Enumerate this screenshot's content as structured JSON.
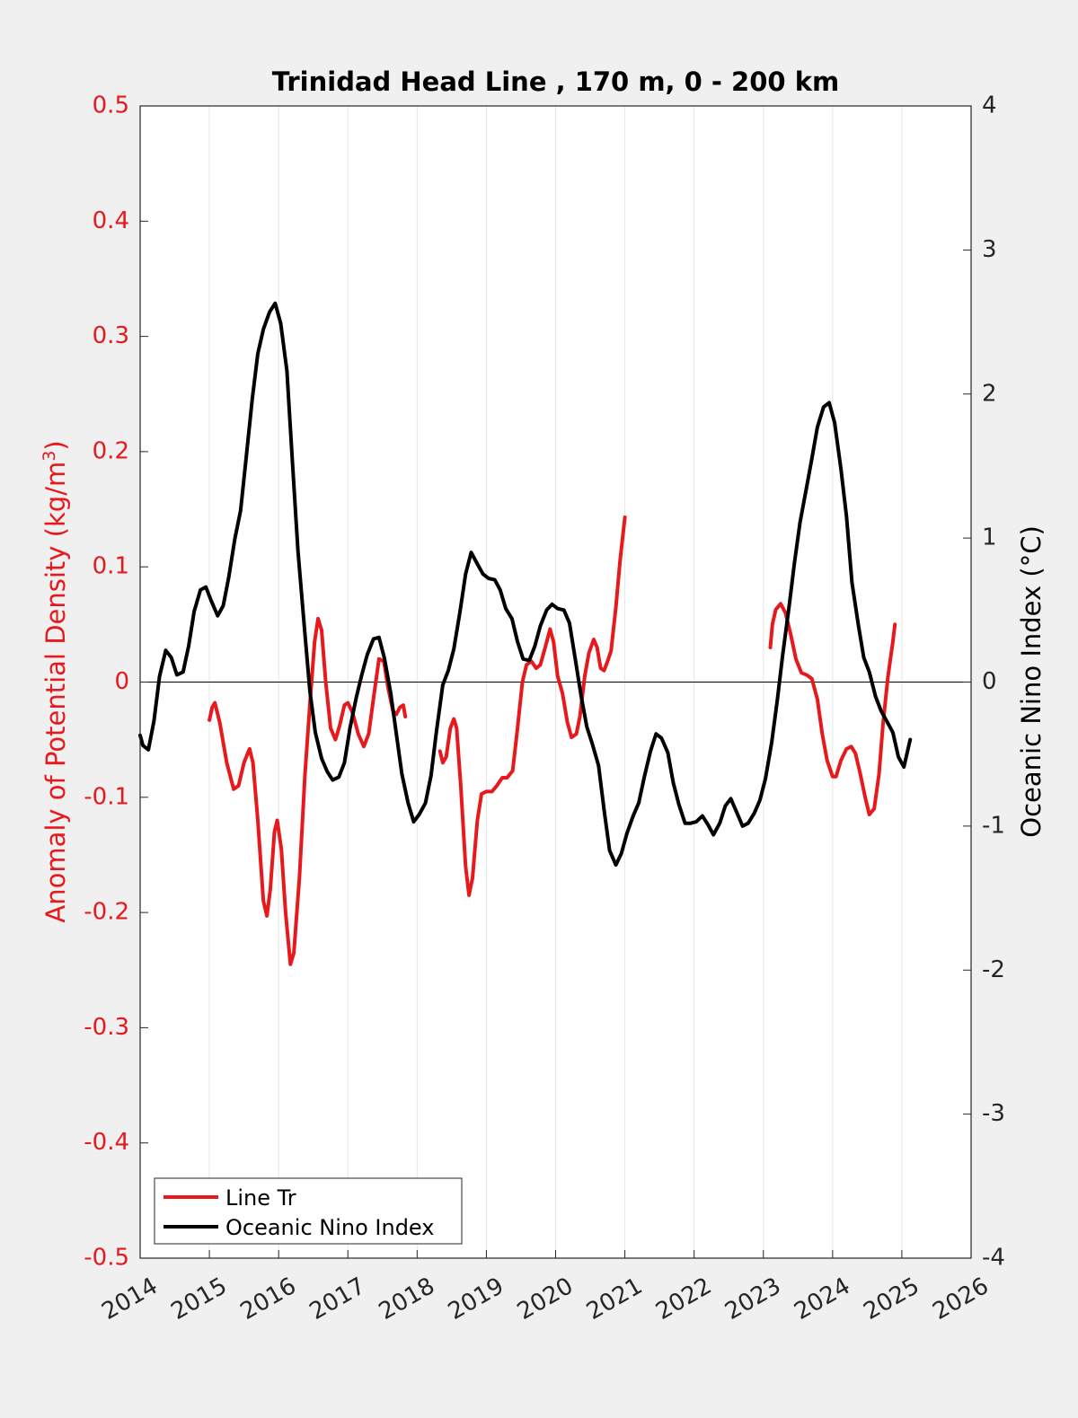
{
  "chart_data": {
    "type": "line",
    "title": "Trinidad Head Line , 170 m, 0 - 200 km",
    "x_ticks": [
      "2014",
      "2015",
      "2016",
      "2017",
      "2018",
      "2019",
      "2020",
      "2021",
      "2022",
      "2023",
      "2024",
      "2025",
      "2026"
    ],
    "xlim": [
      2014,
      2026
    ],
    "left_axis": {
      "label": "Anomaly of Potential Density (kg/m",
      "label_sup": "3",
      "label_end": ")",
      "ylim": [
        -0.5,
        0.5
      ],
      "ticks": [
        "0.5",
        "0.4",
        "0.3",
        "0.2",
        "0.1",
        "0",
        "-0.1",
        "-0.2",
        "-0.3",
        "-0.4",
        "-0.5"
      ],
      "color": "#e8191c"
    },
    "right_axis": {
      "label": "Oceanic Nino Index (°C)",
      "ylim": [
        -4,
        4
      ],
      "ticks": [
        "4",
        "3",
        "2",
        "1",
        "0",
        "-1",
        "-2",
        "-3",
        "-4"
      ],
      "color": "#000000"
    },
    "grid": "vertical",
    "zero_line": true,
    "legend": {
      "placement": "bottom-left",
      "entries": [
        "Line Tr",
        "Oceanic Nino Index"
      ]
    },
    "series": [
      {
        "name": "Line Tr",
        "axis": "left",
        "color": "#e8191c",
        "segments": [
          [
            [
              2015.0,
              -0.033
            ],
            [
              2015.04,
              -0.022
            ],
            [
              2015.08,
              -0.018
            ],
            [
              2015.15,
              -0.035
            ],
            [
              2015.25,
              -0.07
            ],
            [
              2015.35,
              -0.093
            ],
            [
              2015.42,
              -0.09
            ],
            [
              2015.5,
              -0.07
            ],
            [
              2015.58,
              -0.058
            ],
            [
              2015.63,
              -0.07
            ],
            [
              2015.7,
              -0.12
            ],
            [
              2015.78,
              -0.19
            ],
            [
              2015.83,
              -0.203
            ],
            [
              2015.88,
              -0.18
            ],
            [
              2015.94,
              -0.13
            ],
            [
              2015.98,
              -0.12
            ],
            [
              2016.04,
              -0.145
            ],
            [
              2016.1,
              -0.2
            ],
            [
              2016.17,
              -0.245
            ],
            [
              2016.22,
              -0.235
            ],
            [
              2016.3,
              -0.17
            ],
            [
              2016.38,
              -0.08
            ],
            [
              2016.45,
              -0.02
            ],
            [
              2016.52,
              0.035
            ],
            [
              2016.57,
              0.055
            ],
            [
              2016.62,
              0.045
            ],
            [
              2016.68,
              0.0
            ],
            [
              2016.75,
              -0.04
            ],
            [
              2016.82,
              -0.05
            ],
            [
              2016.88,
              -0.038
            ],
            [
              2016.95,
              -0.02
            ],
            [
              2017.0,
              -0.018
            ],
            [
              2017.07,
              -0.027
            ],
            [
              2017.15,
              -0.045
            ],
            [
              2017.23,
              -0.056
            ],
            [
              2017.3,
              -0.045
            ],
            [
              2017.38,
              -0.01
            ],
            [
              2017.45,
              0.02
            ],
            [
              2017.52,
              0.018
            ],
            [
              2017.58,
              -0.005
            ],
            [
              2017.65,
              -0.025
            ],
            [
              2017.7,
              -0.028
            ],
            [
              2017.75,
              -0.022
            ],
            [
              2017.8,
              -0.02
            ],
            [
              2017.83,
              -0.03
            ]
          ],
          [
            [
              2018.33,
              -0.06
            ],
            [
              2018.37,
              -0.07
            ],
            [
              2018.42,
              -0.065
            ],
            [
              2018.48,
              -0.04
            ],
            [
              2018.53,
              -0.032
            ],
            [
              2018.57,
              -0.04
            ],
            [
              2018.63,
              -0.09
            ],
            [
              2018.7,
              -0.16
            ],
            [
              2018.75,
              -0.185
            ],
            [
              2018.8,
              -0.17
            ],
            [
              2018.87,
              -0.12
            ],
            [
              2018.93,
              -0.097
            ],
            [
              2019.0,
              -0.095
            ],
            [
              2019.08,
              -0.095
            ],
            [
              2019.15,
              -0.09
            ],
            [
              2019.23,
              -0.083
            ],
            [
              2019.3,
              -0.083
            ],
            [
              2019.38,
              -0.077
            ],
            [
              2019.45,
              -0.04
            ],
            [
              2019.52,
              0.0
            ],
            [
              2019.58,
              0.015
            ],
            [
              2019.65,
              0.018
            ],
            [
              2019.72,
              0.012
            ],
            [
              2019.78,
              0.015
            ],
            [
              2019.85,
              0.03
            ],
            [
              2019.92,
              0.046
            ],
            [
              2019.97,
              0.035
            ],
            [
              2020.03,
              0.005
            ],
            [
              2020.1,
              -0.01
            ],
            [
              2020.17,
              -0.035
            ],
            [
              2020.23,
              -0.048
            ],
            [
              2020.3,
              -0.045
            ],
            [
              2020.35,
              -0.03
            ],
            [
              2020.42,
              0.005
            ],
            [
              2020.48,
              0.025
            ],
            [
              2020.55,
              0.037
            ],
            [
              2020.6,
              0.03
            ],
            [
              2020.65,
              0.012
            ],
            [
              2020.7,
              0.01
            ],
            [
              2020.75,
              0.018
            ],
            [
              2020.8,
              0.027
            ],
            [
              2020.87,
              0.065
            ],
            [
              2020.93,
              0.105
            ],
            [
              2021.0,
              0.143
            ]
          ],
          [
            [
              2023.1,
              0.03
            ],
            [
              2023.13,
              0.05
            ],
            [
              2023.18,
              0.063
            ],
            [
              2023.25,
              0.068
            ],
            [
              2023.32,
              0.06
            ],
            [
              2023.4,
              0.04
            ],
            [
              2023.47,
              0.02
            ],
            [
              2023.55,
              0.008
            ],
            [
              2023.63,
              0.006
            ],
            [
              2023.7,
              0.003
            ],
            [
              2023.78,
              -0.015
            ],
            [
              2023.85,
              -0.045
            ],
            [
              2023.92,
              -0.068
            ],
            [
              2024.0,
              -0.082
            ],
            [
              2024.05,
              -0.082
            ],
            [
              2024.12,
              -0.068
            ],
            [
              2024.2,
              -0.058
            ],
            [
              2024.27,
              -0.056
            ],
            [
              2024.33,
              -0.062
            ],
            [
              2024.4,
              -0.08
            ],
            [
              2024.47,
              -0.1
            ],
            [
              2024.53,
              -0.115
            ],
            [
              2024.6,
              -0.11
            ],
            [
              2024.67,
              -0.08
            ],
            [
              2024.73,
              -0.035
            ],
            [
              2024.8,
              0.005
            ],
            [
              2024.87,
              0.035
            ],
            [
              2024.9,
              0.05
            ]
          ]
        ]
      },
      {
        "name": "Oceanic Nino Index",
        "axis": "right",
        "color": "#000000",
        "segments": [
          [
            [
              2014.0,
              -0.37
            ],
            [
              2014.04,
              -0.44
            ],
            [
              2014.12,
              -0.47
            ],
            [
              2014.2,
              -0.27
            ],
            [
              2014.28,
              0.04
            ],
            [
              2014.37,
              0.22
            ],
            [
              2014.45,
              0.17
            ],
            [
              2014.53,
              0.05
            ],
            [
              2014.62,
              0.07
            ],
            [
              2014.7,
              0.25
            ],
            [
              2014.78,
              0.49
            ],
            [
              2014.87,
              0.64
            ],
            [
              2014.95,
              0.66
            ],
            [
              2015.03,
              0.56
            ],
            [
              2015.12,
              0.46
            ],
            [
              2015.2,
              0.53
            ],
            [
              2015.28,
              0.73
            ],
            [
              2015.37,
              1.0
            ],
            [
              2015.45,
              1.19
            ],
            [
              2015.53,
              1.55
            ],
            [
              2015.62,
              1.97
            ],
            [
              2015.7,
              2.28
            ],
            [
              2015.78,
              2.45
            ],
            [
              2015.87,
              2.57
            ],
            [
              2015.95,
              2.63
            ],
            [
              2016.03,
              2.49
            ],
            [
              2016.12,
              2.16
            ],
            [
              2016.2,
              1.52
            ],
            [
              2016.28,
              0.91
            ],
            [
              2016.37,
              0.39
            ],
            [
              2016.45,
              -0.06
            ],
            [
              2016.53,
              -0.35
            ],
            [
              2016.62,
              -0.53
            ],
            [
              2016.7,
              -0.62
            ],
            [
              2016.78,
              -0.68
            ],
            [
              2016.87,
              -0.66
            ],
            [
              2016.95,
              -0.56
            ],
            [
              2017.03,
              -0.32
            ],
            [
              2017.12,
              -0.11
            ],
            [
              2017.2,
              0.05
            ],
            [
              2017.28,
              0.19
            ],
            [
              2017.37,
              0.3
            ],
            [
              2017.45,
              0.31
            ],
            [
              2017.53,
              0.16
            ],
            [
              2017.62,
              -0.08
            ],
            [
              2017.7,
              -0.36
            ],
            [
              2017.78,
              -0.64
            ],
            [
              2017.87,
              -0.84
            ],
            [
              2017.95,
              -0.97
            ],
            [
              2018.03,
              -0.92
            ],
            [
              2018.12,
              -0.84
            ],
            [
              2018.2,
              -0.65
            ],
            [
              2018.28,
              -0.34
            ],
            [
              2018.37,
              -0.02
            ],
            [
              2018.45,
              0.08
            ],
            [
              2018.53,
              0.23
            ],
            [
              2018.62,
              0.49
            ],
            [
              2018.7,
              0.75
            ],
            [
              2018.78,
              0.9
            ],
            [
              2018.87,
              0.82
            ],
            [
              2018.95,
              0.75
            ],
            [
              2019.03,
              0.72
            ],
            [
              2019.12,
              0.71
            ],
            [
              2019.2,
              0.64
            ],
            [
              2019.28,
              0.51
            ],
            [
              2019.37,
              0.44
            ],
            [
              2019.45,
              0.28
            ],
            [
              2019.53,
              0.16
            ],
            [
              2019.62,
              0.15
            ],
            [
              2019.7,
              0.25
            ],
            [
              2019.78,
              0.39
            ],
            [
              2019.87,
              0.5
            ],
            [
              2019.95,
              0.54
            ],
            [
              2020.03,
              0.51
            ],
            [
              2020.12,
              0.5
            ],
            [
              2020.2,
              0.41
            ],
            [
              2020.28,
              0.17
            ],
            [
              2020.37,
              -0.1
            ],
            [
              2020.45,
              -0.31
            ],
            [
              2020.53,
              -0.43
            ],
            [
              2020.62,
              -0.58
            ],
            [
              2020.7,
              -0.89
            ],
            [
              2020.78,
              -1.17
            ],
            [
              2020.87,
              -1.27
            ],
            [
              2020.95,
              -1.19
            ],
            [
              2021.03,
              -1.05
            ],
            [
              2021.12,
              -0.93
            ],
            [
              2021.2,
              -0.84
            ],
            [
              2021.28,
              -0.66
            ],
            [
              2021.37,
              -0.48
            ],
            [
              2021.45,
              -0.36
            ],
            [
              2021.53,
              -0.39
            ],
            [
              2021.62,
              -0.49
            ],
            [
              2021.7,
              -0.7
            ],
            [
              2021.78,
              -0.85
            ],
            [
              2021.87,
              -0.98
            ],
            [
              2021.95,
              -0.98
            ],
            [
              2022.03,
              -0.97
            ],
            [
              2022.12,
              -0.93
            ],
            [
              2022.2,
              -0.99
            ],
            [
              2022.28,
              -1.06
            ],
            [
              2022.37,
              -0.98
            ],
            [
              2022.45,
              -0.86
            ],
            [
              2022.53,
              -0.81
            ],
            [
              2022.62,
              -0.91
            ],
            [
              2022.7,
              -1.0
            ],
            [
              2022.78,
              -0.98
            ],
            [
              2022.87,
              -0.91
            ],
            [
              2022.95,
              -0.82
            ],
            [
              2023.03,
              -0.67
            ],
            [
              2023.12,
              -0.42
            ],
            [
              2023.2,
              -0.13
            ],
            [
              2023.28,
              0.19
            ],
            [
              2023.37,
              0.52
            ],
            [
              2023.45,
              0.83
            ],
            [
              2023.53,
              1.11
            ],
            [
              2023.62,
              1.34
            ],
            [
              2023.7,
              1.55
            ],
            [
              2023.78,
              1.77
            ],
            [
              2023.87,
              1.91
            ],
            [
              2023.95,
              1.94
            ],
            [
              2024.03,
              1.8
            ],
            [
              2024.12,
              1.48
            ],
            [
              2024.2,
              1.15
            ],
            [
              2024.28,
              0.69
            ],
            [
              2024.37,
              0.4
            ],
            [
              2024.45,
              0.17
            ],
            [
              2024.53,
              0.07
            ],
            [
              2024.62,
              -0.1
            ],
            [
              2024.7,
              -0.2
            ],
            [
              2024.78,
              -0.27
            ],
            [
              2024.87,
              -0.35
            ],
            [
              2024.95,
              -0.52
            ],
            [
              2025.03,
              -0.59
            ],
            [
              2025.12,
              -0.4
            ]
          ]
        ]
      }
    ]
  }
}
